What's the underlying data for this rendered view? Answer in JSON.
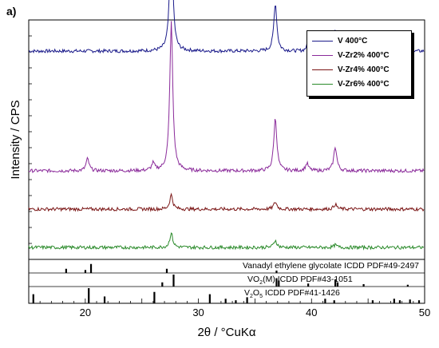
{
  "chart_data": {
    "type": "line",
    "panel_label": "a)",
    "xlabel": "2θ / °CuKα",
    "ylabel": "Intensity / CPS",
    "xlim": [
      15,
      50
    ],
    "xticks": [
      "20",
      "30",
      "40",
      "50"
    ],
    "legend_position": "top-right",
    "series": [
      {
        "name": "V 400°C",
        "color": "#1a1a8a",
        "baseline": 0.87,
        "peaks": [
          [
            27.6,
            0.53
          ],
          [
            36.8,
            0.2
          ],
          [
            42.1,
            0.09
          ],
          [
            39.6,
            0.02
          ],
          [
            44.7,
            0.01
          ]
        ]
      },
      {
        "name": "V-Zr2% 400°C",
        "color": "#8a2a9a",
        "baseline": 0.37,
        "peaks": [
          [
            27.6,
            0.62
          ],
          [
            36.8,
            0.22
          ],
          [
            42.1,
            0.1
          ],
          [
            20.2,
            0.05
          ],
          [
            26.0,
            0.03
          ],
          [
            39.6,
            0.03
          ]
        ]
      },
      {
        "name": "V-Zr4% 400°C",
        "color": "#7a1515",
        "baseline": 0.21,
        "peaks": [
          [
            27.6,
            0.06
          ],
          [
            36.8,
            0.03
          ],
          [
            42.1,
            0.02
          ]
        ]
      },
      {
        "name": "V-Zr6% 400°C",
        "color": "#2a8a2a",
        "baseline": 0.05,
        "peaks": [
          [
            27.6,
            0.06
          ],
          [
            36.8,
            0.03
          ],
          [
            42.1,
            0.01
          ]
        ]
      }
    ],
    "references": [
      {
        "label_main": "Vanadyl ethylene glycolate ICDD PDF#49-2497",
        "sticks": [
          [
            18.3,
            0.35
          ],
          [
            20.0,
            0.25
          ],
          [
            20.5,
            0.75
          ],
          [
            27.2,
            0.35
          ],
          [
            36.9,
            0.2
          ]
        ]
      },
      {
        "label_pre": "VO",
        "label_sub": "2",
        "label_post": "(M) ICDD PDF#43-1051",
        "sticks": [
          [
            26.8,
            0.35
          ],
          [
            27.8,
            1.0
          ],
          [
            36.9,
            0.7
          ],
          [
            37.1,
            0.5
          ],
          [
            39.7,
            0.25
          ],
          [
            42.1,
            0.6
          ],
          [
            42.3,
            0.35
          ],
          [
            44.6,
            0.2
          ],
          [
            48.5,
            0.15
          ]
        ]
      },
      {
        "label_pre": "V",
        "label_sub": "2",
        "label_mid": "O",
        "label_sub2": "5",
        "label_post": " ICDD PDF#41-1426",
        "sticks": [
          [
            15.4,
            0.6
          ],
          [
            20.3,
            1.0
          ],
          [
            21.7,
            0.45
          ],
          [
            26.1,
            0.75
          ],
          [
            31.0,
            0.6
          ],
          [
            32.4,
            0.3
          ],
          [
            33.3,
            0.2
          ],
          [
            34.3,
            0.4
          ],
          [
            41.2,
            0.3
          ],
          [
            42.0,
            0.2
          ],
          [
            45.4,
            0.2
          ],
          [
            47.3,
            0.3
          ],
          [
            47.8,
            0.2
          ],
          [
            48.7,
            0.25
          ],
          [
            49.5,
            0.2
          ]
        ]
      }
    ]
  }
}
